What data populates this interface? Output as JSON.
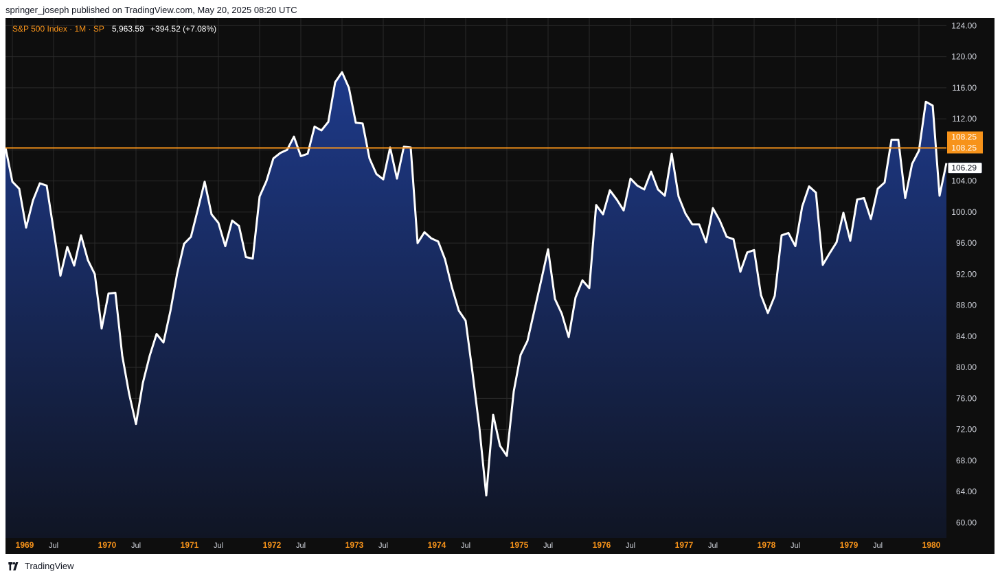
{
  "header": {
    "published_text": "springer_joseph published on TradingView.com, May 20, 2025 08:20 UTC"
  },
  "legend": {
    "symbol": "S&P 500 Index · 1M · SP",
    "value": "5,963.59",
    "change": "+394.52 (+7.08%)"
  },
  "footer": {
    "brand": "TradingView"
  },
  "colors": {
    "background": "#0e0e0e",
    "grid": "#2a2a2a",
    "line": "#ffffff",
    "fill_top": "#1e3a8a",
    "fill_bottom": "#101524",
    "accent": "#f7931a",
    "axis_text": "#d1d4dc",
    "year_text": "#f7931a"
  },
  "chart_data": {
    "type": "area",
    "title": "S&P 500 Index · 1M · SP",
    "x_unit": "month",
    "x_start": "1968-12",
    "y_axis_side": "right",
    "ylim": [
      58,
      125
    ],
    "yticks": [
      "60.00",
      "64.00",
      "68.00",
      "72.00",
      "76.00",
      "80.00",
      "84.00",
      "88.00",
      "92.00",
      "96.00",
      "100.00",
      "104.00",
      "108.00",
      "112.00",
      "116.00",
      "120.00",
      "124.00"
    ],
    "xticks": [
      {
        "label": "1969",
        "date": "1969-01",
        "year": true
      },
      {
        "label": "Jul",
        "date": "1969-07",
        "year": false
      },
      {
        "label": "1970",
        "date": "1970-01",
        "year": true
      },
      {
        "label": "Jul",
        "date": "1970-07",
        "year": false
      },
      {
        "label": "1971",
        "date": "1971-01",
        "year": true
      },
      {
        "label": "Jul",
        "date": "1971-07",
        "year": false
      },
      {
        "label": "1972",
        "date": "1972-01",
        "year": true
      },
      {
        "label": "Jul",
        "date": "1972-07",
        "year": false
      },
      {
        "label": "1973",
        "date": "1973-01",
        "year": true
      },
      {
        "label": "Jul",
        "date": "1973-07",
        "year": false
      },
      {
        "label": "1974",
        "date": "1974-01",
        "year": true
      },
      {
        "label": "Jul",
        "date": "1974-07",
        "year": false
      },
      {
        "label": "1975",
        "date": "1975-01",
        "year": true
      },
      {
        "label": "Jul",
        "date": "1975-07",
        "year": false
      },
      {
        "label": "1976",
        "date": "1976-01",
        "year": true
      },
      {
        "label": "Jul",
        "date": "1976-07",
        "year": false
      },
      {
        "label": "1977",
        "date": "1977-01",
        "year": true
      },
      {
        "label": "Jul",
        "date": "1977-07",
        "year": false
      },
      {
        "label": "1978",
        "date": "1978-01",
        "year": true
      },
      {
        "label": "Jul",
        "date": "1978-07",
        "year": false
      },
      {
        "label": "1979",
        "date": "1979-01",
        "year": true
      },
      {
        "label": "Jul",
        "date": "1979-07",
        "year": false
      },
      {
        "label": "1980",
        "date": "1980-01",
        "year": true
      }
    ],
    "values": [
      108.3,
      103.9,
      103.0,
      98.0,
      101.5,
      103.7,
      103.4,
      97.7,
      91.8,
      95.5,
      93.1,
      97.0,
      93.8,
      92.0,
      85.0,
      89.5,
      89.6,
      81.5,
      76.6,
      72.7,
      78.0,
      81.5,
      84.3,
      83.2,
      87.2,
      92.1,
      95.9,
      96.8,
      100.3,
      103.9,
      99.7,
      98.6,
      95.6,
      98.9,
      98.2,
      94.2,
      94.0,
      102.0,
      104.0,
      106.9,
      107.6,
      108.0,
      109.7,
      107.2,
      107.5,
      111.0,
      110.5,
      111.6,
      116.7,
      118.0,
      116.0,
      111.5,
      111.4,
      106.9,
      104.9,
      104.2,
      108.3,
      104.3,
      108.4,
      108.3,
      96.0,
      97.4,
      96.6,
      96.2,
      93.9,
      90.3,
      87.3,
      86.0,
      79.3,
      72.2,
      63.5,
      73.9,
      69.9,
      68.6,
      76.9,
      81.6,
      83.4,
      87.3,
      91.2,
      95.2,
      88.8,
      86.9,
      83.9,
      89.0,
      91.2,
      90.2,
      100.9,
      99.7,
      102.8,
      101.6,
      100.2,
      104.3,
      103.4,
      102.9,
      105.2,
      102.9,
      102.1,
      107.5,
      102.0,
      99.8,
      98.4,
      98.4,
      96.1,
      100.5,
      98.9,
      96.8,
      96.5,
      92.3,
      94.8,
      95.1,
      89.3,
      87.0,
      89.2,
      97.0,
      97.3,
      95.6,
      100.7,
      103.3,
      102.5,
      93.2,
      94.7,
      96.1,
      99.9,
      96.3,
      101.6,
      101.8,
      99.1,
      103.0,
      103.8,
      109.3,
      109.3,
      101.8,
      106.2,
      107.9,
      114.2,
      113.7,
      102.1,
      106.3
    ],
    "last_value": 106.29,
    "horizontal_line": {
      "value": 108.25,
      "label": "108.25"
    },
    "price_labels": [
      {
        "text": "108.25",
        "style": "filled"
      },
      {
        "text": "108.25",
        "style": "filled"
      },
      {
        "text": "106.29",
        "style": "outline"
      }
    ]
  }
}
